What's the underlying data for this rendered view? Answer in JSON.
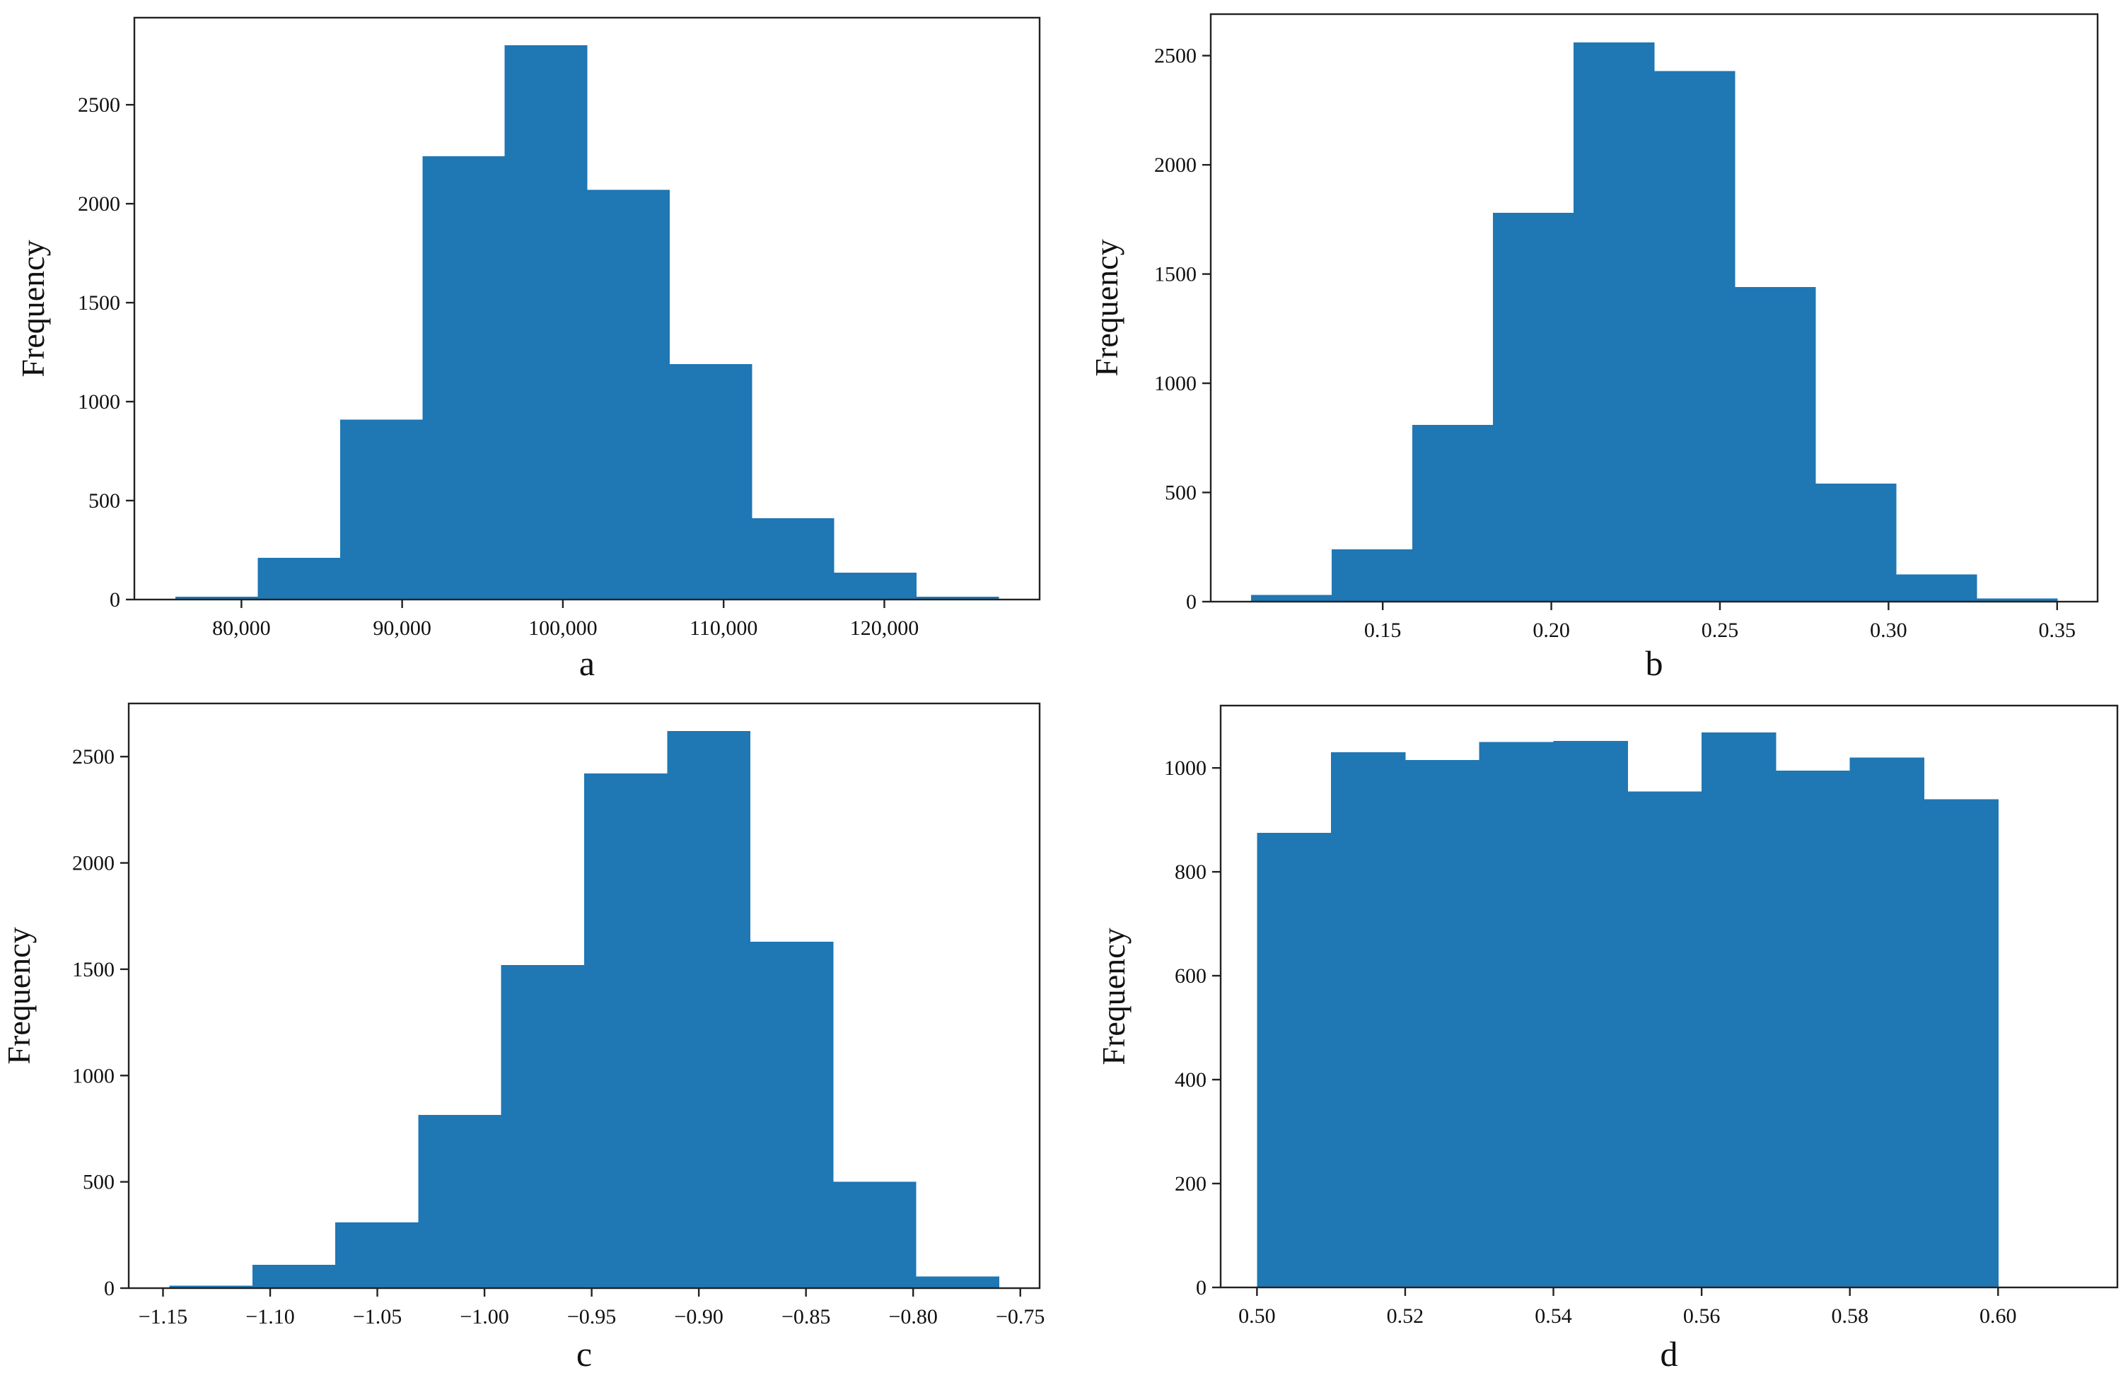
{
  "chart_data": [
    {
      "id": "a",
      "type": "bar",
      "panel_label": "a",
      "xlabel": "",
      "ylabel": "Frequency",
      "bin_edges": [
        75900,
        81020,
        86140,
        91260,
        96380,
        101500,
        106620,
        111740,
        116860,
        121980,
        127100
      ],
      "values": [
        15,
        210,
        910,
        2240,
        2800,
        2070,
        1190,
        410,
        135,
        15
      ],
      "xlim": [
        73340,
        129660
      ],
      "ylim": [
        0,
        2940
      ],
      "xticks": [
        80000,
        90000,
        100000,
        110000,
        120000
      ],
      "xtick_labels": [
        "80,000",
        "90,000",
        "100,000",
        "110,000",
        "120,000"
      ],
      "yticks": [
        0,
        500,
        1000,
        1500,
        2000,
        2500
      ],
      "ytick_labels": [
        "0",
        "500",
        "1000",
        "1500",
        "2000",
        "2500"
      ],
      "color": "#1f77b4"
    },
    {
      "id": "b",
      "type": "bar",
      "panel_label": "b",
      "xlabel": "",
      "ylabel": "Frequency",
      "bin_edges": [
        0.111,
        0.1349,
        0.1588,
        0.1827,
        0.2066,
        0.2305,
        0.2544,
        0.2783,
        0.3022,
        0.3261,
        0.35
      ],
      "values": [
        30,
        240,
        810,
        1780,
        2560,
        2430,
        1440,
        540,
        125,
        15
      ],
      "xlim": [
        0.099,
        0.362
      ],
      "ylim": [
        0,
        2690
      ],
      "xticks": [
        0.15,
        0.2,
        0.25,
        0.3,
        0.35
      ],
      "xtick_labels": [
        "0.15",
        "0.20",
        "0.25",
        "0.30",
        "0.35"
      ],
      "yticks": [
        0,
        500,
        1000,
        1500,
        2000,
        2500
      ],
      "ytick_labels": [
        "0",
        "500",
        "1000",
        "1500",
        "2000",
        "2500"
      ],
      "color": "#1f77b4"
    },
    {
      "id": "c",
      "type": "bar",
      "panel_label": "c",
      "xlabel": "",
      "ylabel": "Frequency",
      "bin_edges": [
        -1.147,
        -1.1083,
        -1.0696,
        -1.0309,
        -0.9922,
        -0.9535,
        -0.9148,
        -0.8761,
        -0.8374,
        -0.7987,
        -0.76
      ],
      "values": [
        12,
        110,
        310,
        815,
        1520,
        2420,
        2620,
        1630,
        500,
        55
      ],
      "xlim": [
        -1.166,
        -0.741
      ],
      "ylim": [
        0,
        2750
      ],
      "xticks": [
        -1.15,
        -1.1,
        -1.05,
        -1.0,
        -0.95,
        -0.9,
        -0.85,
        -0.8,
        -0.75
      ],
      "xtick_labels": [
        "−1.15",
        "−1.10",
        "−1.05",
        "−1.00",
        "−0.95",
        "−0.90",
        "−0.85",
        "−0.80",
        "−0.75"
      ],
      "yticks": [
        0,
        500,
        1000,
        1500,
        2000,
        2500
      ],
      "ytick_labels": [
        "0",
        "500",
        "1000",
        "1500",
        "2000",
        "2500"
      ],
      "color": "#1f77b4"
    },
    {
      "id": "d",
      "type": "bar",
      "panel_label": "d",
      "xlabel": "",
      "ylabel": "Frequency",
      "bin_edges": [
        0.5,
        0.51,
        0.52,
        0.53,
        0.54,
        0.55,
        0.56,
        0.57,
        0.58,
        0.59,
        0.6
      ],
      "values": [
        875,
        1030,
        1015,
        1050,
        1052,
        955,
        1068,
        995,
        1020,
        940
      ],
      "xlim": [
        0.4951,
        0.6161
      ],
      "ylim": [
        0,
        1120
      ],
      "xticks": [
        0.5,
        0.52,
        0.54,
        0.56,
        0.58,
        0.6
      ],
      "xtick_labels": [
        "0.50",
        "0.52",
        "0.54",
        "0.56",
        "0.58",
        "0.60"
      ],
      "yticks": [
        0,
        200,
        400,
        600,
        800,
        1000
      ],
      "ytick_labels": [
        "0",
        "200",
        "400",
        "600",
        "800",
        "1000"
      ],
      "color": "#1f77b4"
    }
  ]
}
